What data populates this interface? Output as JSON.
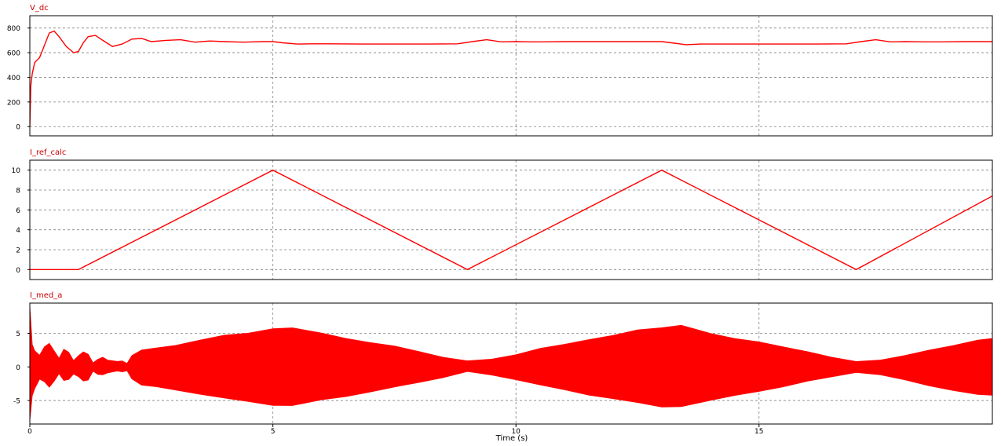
{
  "colors": {
    "trace": "#ff0000",
    "title": "#cc0000",
    "grid": "#808080",
    "frame": "#000000",
    "background": "#ffffff"
  },
  "xaxis": {
    "label": "Time (s)",
    "xlim": [
      0,
      19.8
    ],
    "ticks": [
      0,
      5,
      10,
      15
    ],
    "tick_labels": [
      "0",
      "5",
      "10",
      "15"
    ]
  },
  "chart_data": [
    {
      "type": "line",
      "title": "V_dc",
      "xlabel": "",
      "ylabel": "",
      "ylim": [
        -75,
        900
      ],
      "yticks": [
        0,
        200,
        400,
        600,
        800
      ],
      "ytick_labels": [
        "0",
        "200",
        "400",
        "600",
        "800"
      ],
      "grid": true,
      "series": [
        {
          "x": [
            0,
            0.02,
            0.05,
            0.1,
            0.2,
            0.3,
            0.4,
            0.5,
            0.6,
            0.75,
            0.9,
            1.0,
            1.1,
            1.2,
            1.35,
            1.5,
            1.7,
            1.9,
            2.1,
            2.3,
            2.5,
            2.8,
            3.1,
            3.4,
            3.7,
            4.0,
            4.4,
            4.8,
            5.0,
            5.2,
            5.5,
            5.8,
            6.2,
            6.8,
            7.5,
            8.2,
            8.8,
            9.1,
            9.4,
            9.7,
            10.0,
            10.3,
            10.6,
            11.0,
            11.5,
            12.0,
            12.5,
            13.0,
            13.2,
            13.5,
            13.8,
            14.2,
            14.8,
            15.5,
            16.2,
            16.8,
            17.1,
            17.4,
            17.7,
            18.0,
            18.4,
            18.8,
            19.2,
            19.8
          ],
          "y": [
            0,
            330,
            430,
            520,
            560,
            660,
            760,
            775,
            730,
            650,
            600,
            610,
            680,
            730,
            740,
            700,
            650,
            670,
            710,
            715,
            690,
            700,
            705,
            685,
            695,
            690,
            685,
            690,
            690,
            680,
            670,
            672,
            672,
            670,
            670,
            670,
            672,
            690,
            705,
            688,
            690,
            688,
            688,
            690,
            690,
            690,
            690,
            690,
            680,
            665,
            670,
            670,
            670,
            670,
            670,
            672,
            690,
            705,
            688,
            690,
            688,
            688,
            690,
            690
          ]
        }
      ]
    },
    {
      "type": "line",
      "title": "I_ref_calc",
      "xlabel": "",
      "ylabel": "",
      "ylim": [
        -1,
        11
      ],
      "yticks": [
        0,
        2,
        4,
        6,
        8,
        10
      ],
      "ytick_labels": [
        "0",
        "2",
        "4",
        "6",
        "8",
        "10"
      ],
      "grid": true,
      "series": [
        {
          "x": [
            0,
            1,
            5,
            9,
            13,
            17,
            19.8
          ],
          "y": [
            0,
            0,
            10,
            0,
            10,
            0,
            7.4
          ]
        }
      ]
    },
    {
      "type": "area",
      "title": "I_med_a",
      "xlabel": "",
      "ylabel": "",
      "ylim": [
        -8.5,
        9.5
      ],
      "yticks": [
        -5,
        0,
        5
      ],
      "ytick_labels": [
        "-5",
        "0",
        "5"
      ],
      "grid": true,
      "series": [
        {
          "x": [
            0,
            0.05,
            0.1,
            0.2,
            0.3,
            0.4,
            0.5,
            0.6,
            0.7,
            0.8,
            0.9,
            1.0,
            1.1,
            1.2,
            1.3,
            1.4,
            1.5,
            1.6,
            1.8,
            1.9,
            2.0,
            2.1,
            2.3,
            2.6,
            3.0,
            3.5,
            4.0,
            4.5,
            5.0,
            5.4,
            6.0,
            6.5,
            7.0,
            7.5,
            8.0,
            8.5,
            9.0,
            9.5,
            10.0,
            10.5,
            11.0,
            11.5,
            12.0,
            12.5,
            13.0,
            13.4,
            14.0,
            14.5,
            15.0,
            15.5,
            16.0,
            16.5,
            17.0,
            17.5,
            18.0,
            18.5,
            19.0,
            19.5,
            19.8
          ],
          "upper": [
            9,
            3.3,
            2.5,
            1.8,
            3.0,
            3.5,
            2.5,
            1.2,
            2.6,
            2.2,
            1.0,
            1.6,
            2.2,
            2.0,
            0.6,
            1.2,
            1.4,
            1.1,
            0.8,
            0.9,
            0.6,
            1.8,
            2.4,
            2.7,
            3.3,
            4.0,
            4.6,
            5.1,
            5.7,
            5.8,
            5.0,
            4.3,
            3.7,
            3.0,
            2.3,
            1.5,
            0.9,
            1.2,
            1.9,
            2.7,
            3.4,
            4.1,
            4.8,
            5.4,
            5.9,
            6.1,
            5.0,
            4.3,
            3.7,
            3.0,
            2.2,
            1.4,
            0.9,
            1.1,
            1.7,
            2.6,
            3.3,
            4.0,
            4.2
          ],
          "lower": [
            -8,
            -4.4,
            -3.2,
            -1.8,
            -2.2,
            -3.0,
            -2.2,
            -1.0,
            -2.0,
            -1.8,
            -1.0,
            -1.5,
            -2.0,
            -1.9,
            -0.7,
            -1.2,
            -1.3,
            -1.0,
            -0.7,
            -0.8,
            -0.6,
            -1.8,
            -2.6,
            -2.9,
            -3.4,
            -4.0,
            -4.6,
            -5.2,
            -5.8,
            -5.7,
            -5.0,
            -4.3,
            -3.7,
            -3.0,
            -2.3,
            -1.5,
            -0.8,
            -1.2,
            -2.0,
            -2.7,
            -3.4,
            -4.1,
            -4.8,
            -5.4,
            -5.9,
            -5.8,
            -4.9,
            -4.3,
            -3.7,
            -3.0,
            -2.2,
            -1.4,
            -0.9,
            -1.1,
            -1.8,
            -2.7,
            -3.4,
            -4.1,
            -4.3
          ]
        }
      ]
    }
  ]
}
